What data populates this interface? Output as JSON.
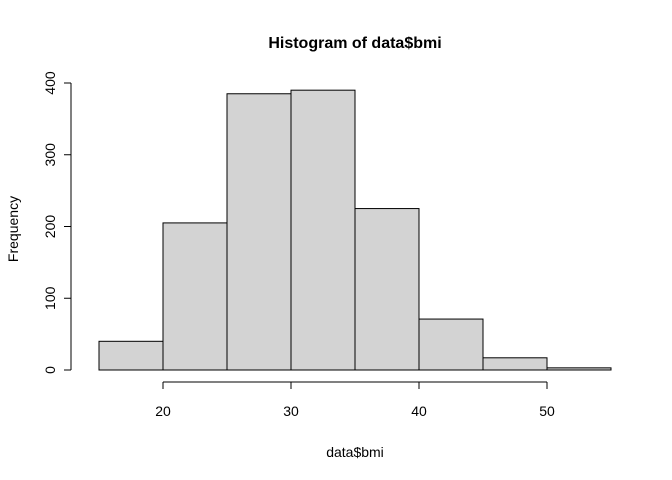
{
  "chart_data": {
    "type": "bar",
    "subtype": "histogram",
    "title": "Histogram of data$bmi",
    "xlabel": "data$bmi",
    "ylabel": "Frequency",
    "bins": [
      {
        "from": 15,
        "to": 20,
        "count": 40
      },
      {
        "from": 20,
        "to": 25,
        "count": 205
      },
      {
        "from": 25,
        "to": 30,
        "count": 385
      },
      {
        "from": 30,
        "to": 35,
        "count": 390
      },
      {
        "from": 35,
        "to": 40,
        "count": 225
      },
      {
        "from": 40,
        "to": 45,
        "count": 71
      },
      {
        "from": 45,
        "to": 50,
        "count": 17
      },
      {
        "from": 50,
        "to": 55,
        "count": 3
      }
    ],
    "x_ticks": [
      20,
      30,
      40,
      50
    ],
    "y_ticks": [
      0,
      100,
      200,
      300,
      400
    ],
    "xlim": [
      15,
      55
    ],
    "ylim": [
      0,
      400
    ],
    "bar_color": "#D3D3D3",
    "edge_color": "#000000",
    "grid": false,
    "legend": "none"
  }
}
